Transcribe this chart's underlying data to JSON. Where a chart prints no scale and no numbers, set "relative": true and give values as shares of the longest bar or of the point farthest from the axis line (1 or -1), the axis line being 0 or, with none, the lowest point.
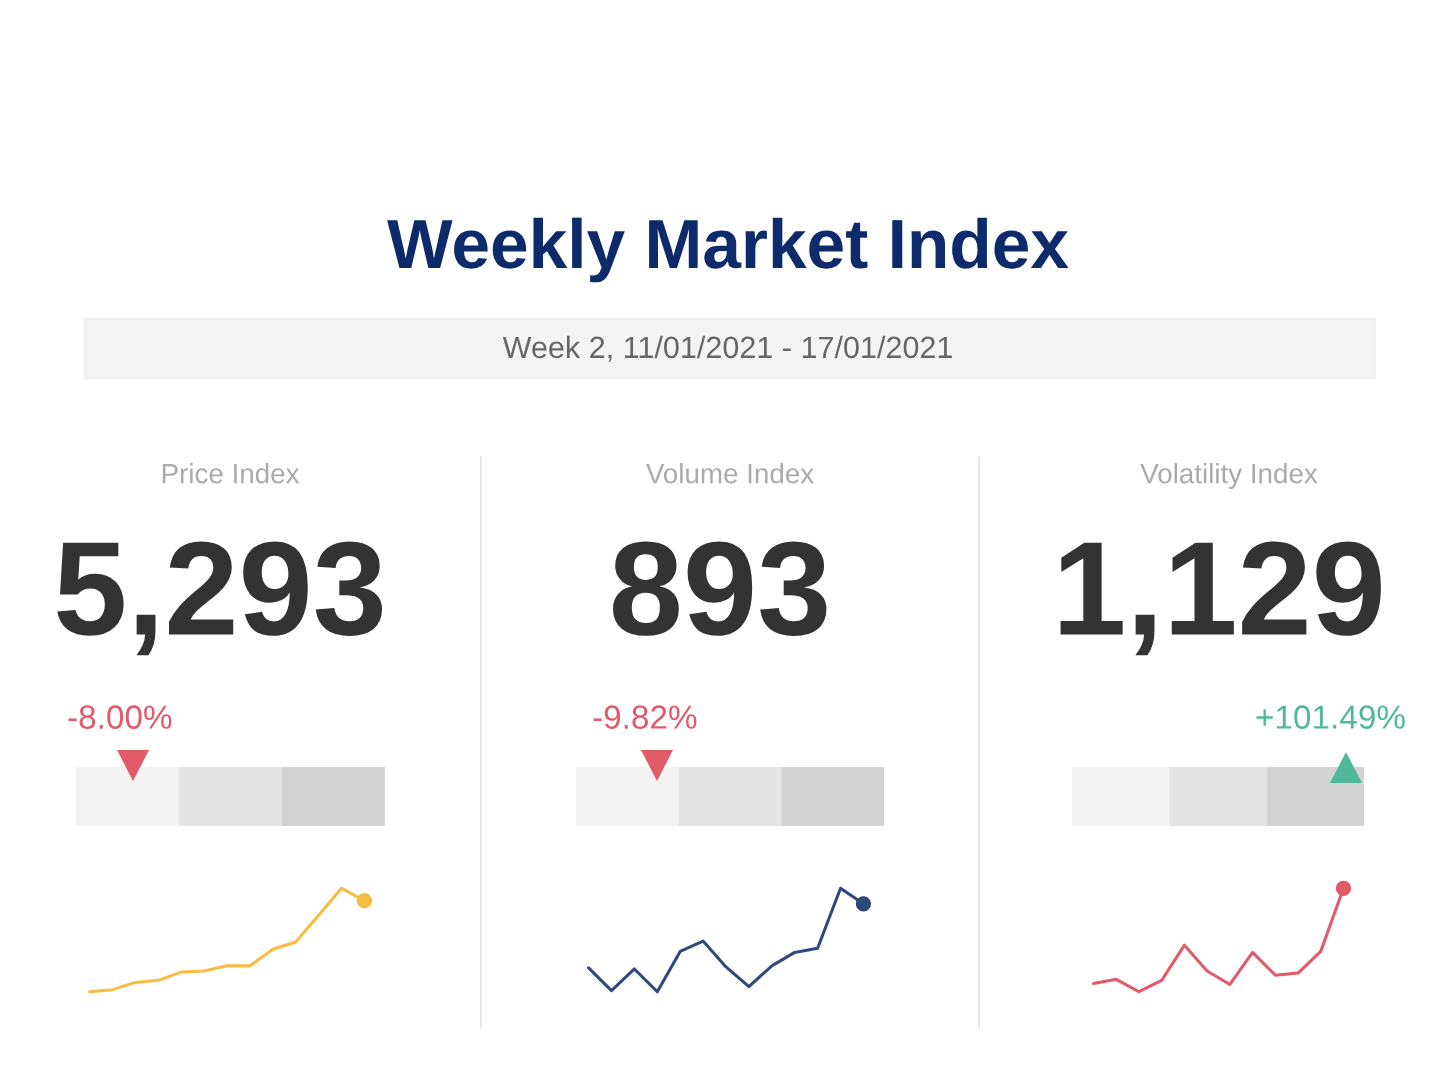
{
  "chart_data": [
    {
      "type": "other",
      "title": "Weekly Market Index",
      "subtitle": "Week 2, 11/01/2021 - 17/01/2021"
    },
    {
      "type": "line",
      "title": "Price Index",
      "annotations": [
        "5,293",
        "-8.00%"
      ],
      "relative": true,
      "categories": [
        null,
        null,
        null,
        null,
        null,
        null,
        null,
        null,
        null,
        null,
        null,
        null,
        null
      ],
      "series": [
        {
          "color": "#f5bd41",
          "values": [
            0,
            0.02,
            0.09,
            0.11,
            0.19,
            0.2,
            0.25,
            0.25,
            0.41,
            0.48,
            0.74,
            1,
            0.88
          ]
        }
      ]
    },
    {
      "type": "line",
      "title": "Volume Index",
      "annotations": [
        "893",
        "-9.82%"
      ],
      "relative": true,
      "categories": [
        null,
        null,
        null,
        null,
        null,
        null,
        null,
        null,
        null,
        null,
        null,
        null,
        null
      ],
      "series": [
        {
          "color": "#2e4a7d",
          "values": [
            0.23,
            0.01,
            0.22,
            0,
            0.39,
            0.49,
            0.24,
            0.05,
            0.25,
            0.38,
            0.42,
            1,
            0.85
          ]
        }
      ]
    },
    {
      "type": "line",
      "title": "Volatility Index",
      "annotations": [
        "1,129",
        "+101.49%"
      ],
      "relative": true,
      "categories": [
        null,
        null,
        null,
        null,
        null,
        null,
        null,
        null,
        null,
        null,
        null,
        null
      ],
      "series": [
        {
          "color": "#e05a68",
          "values": [
            0.08,
            0.12,
            0,
            0.11,
            0.45,
            0.2,
            0.07,
            0.38,
            0.16,
            0.18,
            0.39,
            1
          ]
        }
      ]
    }
  ]
}
